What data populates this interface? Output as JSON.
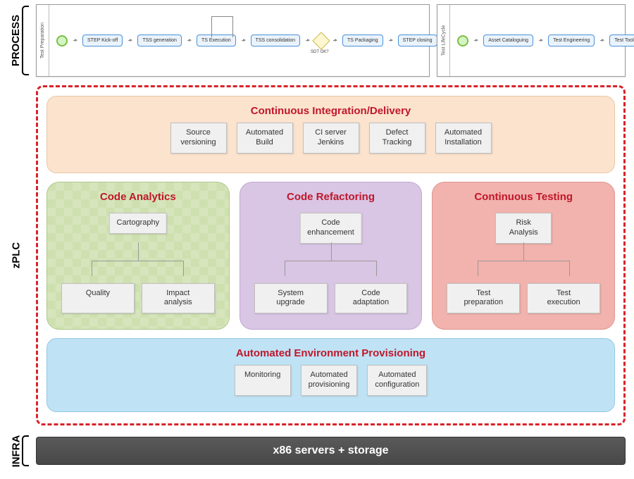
{
  "labels": {
    "process": "PROCESS",
    "zplc": "zPLC",
    "infra": "INFRA"
  },
  "process": {
    "lane1": "Test Preparation",
    "lane2": "Test LifeCycle",
    "tasks1": [
      "STEP Kick-off",
      "TSS generation",
      "TS Execution",
      "TSS consolidation",
      "TS Packaging",
      "STEP closing"
    ],
    "gateway": "SDT OK?",
    "tasks2": [
      "Asset Cataloguing",
      "Test Engineering",
      "Test Tooling"
    ]
  },
  "ci": {
    "title": "Continuous Integration/Delivery",
    "boxes": [
      "Source versioning",
      "Automated Build",
      "CI server Jenkins",
      "Defect Tracking",
      "Automated Installation"
    ]
  },
  "analytics": {
    "title": "Code Analytics",
    "top": "Cartography",
    "children": [
      "Quality",
      "Impact analysis"
    ]
  },
  "refactor": {
    "title": "Code Refactoring",
    "top": "Code enhancement",
    "children": [
      "System upgrade",
      "Code adaptation"
    ]
  },
  "testing": {
    "title": "Continuous Testing",
    "top": "Risk Analysis",
    "children": [
      "Test preparation",
      "Test execution"
    ]
  },
  "env": {
    "title": "Automated Environment Provisioning",
    "boxes": [
      "Monitoring",
      "Automated provisioning",
      "Automated configuration"
    ]
  },
  "infra": {
    "bar": "x86 servers + storage"
  },
  "colors": {
    "accent": "#c0172a",
    "dash": "#d8232a",
    "ci_bg": "#fbe3ce",
    "analytics_bg": "#cfe0b0",
    "refactor_bg": "#d9c5e4",
    "testing_bg": "#f2b2ad",
    "env_bg": "#bfe2f5",
    "infra_bg": "#505050",
    "box_bg": "#f0f0f0",
    "box_border": "#bfbfbf",
    "task_border": "#4a90d9",
    "task_bg": "#eaf3fb"
  }
}
